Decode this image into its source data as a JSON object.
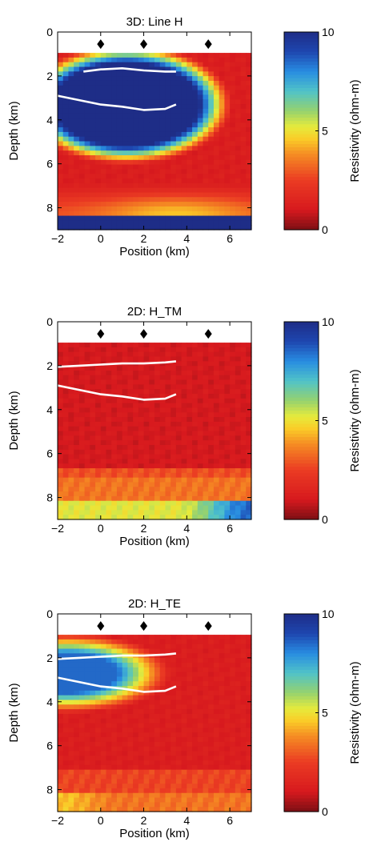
{
  "chart_data": [
    {
      "type": "heatmap",
      "title": "3D: Line H",
      "xlabel": "Position (km)",
      "ylabel": "Depth (km)",
      "xlim": [
        -2,
        7
      ],
      "ylim": [
        0,
        9
      ],
      "xticks": [
        "−2",
        "0",
        "2",
        "4",
        "6"
      ],
      "yticks": [
        "0",
        "2",
        "4",
        "6",
        "8"
      ],
      "colorbar": {
        "label": "Resistivity (ohm-m)",
        "range": [
          0,
          10
        ],
        "ticks": [
          "10",
          "5",
          "0"
        ]
      },
      "stations_x": [
        0,
        2,
        5
      ],
      "lines": [
        [
          [
            -0.8,
            1.8
          ],
          [
            0,
            1.7
          ],
          [
            1.0,
            1.65
          ],
          [
            2.0,
            1.75
          ],
          [
            3.0,
            1.8
          ],
          [
            3.5,
            1.8
          ]
        ],
        [
          [
            -2,
            2.9
          ],
          [
            -1,
            3.1
          ],
          [
            0,
            3.3
          ],
          [
            1,
            3.4
          ],
          [
            2,
            3.55
          ],
          [
            3,
            3.5
          ],
          [
            3.5,
            3.3
          ]
        ]
      ],
      "field": {
        "base": 1.2,
        "top_air": 0.95,
        "bottom_band": [
          8.3,
          10
        ],
        "anomalies": [
          {
            "x": 1.2,
            "z": 3.3,
            "rx": 3.4,
            "rz": 1.9,
            "v": 10,
            "halo": 0.5
          }
        ],
        "deep_gradient": {
          "from": 6.8,
          "to": 8.3,
          "v": 4.5,
          "center_x": 3.5,
          "spread_x": 3.5
        }
      }
    },
    {
      "type": "heatmap",
      "title": "2D: H_TM",
      "xlabel": "Position (km)",
      "ylabel": "Depth (km)",
      "xlim": [
        -2,
        7
      ],
      "ylim": [
        0,
        9
      ],
      "xticks": [
        "−2",
        "0",
        "2",
        "4",
        "6"
      ],
      "yticks": [
        "0",
        "2",
        "4",
        "6",
        "8"
      ],
      "colorbar": {
        "label": "Resistivity (ohm-m)",
        "range": [
          0,
          10
        ],
        "ticks": [
          "10",
          "5",
          "0"
        ]
      },
      "stations_x": [
        0,
        2,
        5
      ],
      "lines": [
        [
          [
            -2,
            2.05
          ],
          [
            -1,
            2.0
          ],
          [
            0,
            1.95
          ],
          [
            1,
            1.9
          ],
          [
            2,
            1.9
          ],
          [
            3,
            1.85
          ],
          [
            3.5,
            1.8
          ]
        ],
        [
          [
            -2,
            2.9
          ],
          [
            -1,
            3.1
          ],
          [
            0,
            3.3
          ],
          [
            1,
            3.4
          ],
          [
            2,
            3.55
          ],
          [
            3,
            3.5
          ],
          [
            3.5,
            3.3
          ]
        ]
      ],
      "field": {
        "base": 1.0,
        "top_air": 0.95,
        "layers": [
          {
            "z0": 6.6,
            "z1": 7.0,
            "v": 2.8
          },
          {
            "z0": 7.0,
            "z1": 8.1,
            "v": 3.4
          },
          {
            "z0": 8.1,
            "z1": 9.0,
            "v": 5.2,
            "ramp_x": [
              3.5,
              7
            ],
            "ramp_v": 8.5
          }
        ]
      }
    },
    {
      "type": "heatmap",
      "title": "2D: H_TE",
      "xlabel": "Position (km)",
      "ylabel": "Depth (km)",
      "xlim": [
        -2,
        7
      ],
      "ylim": [
        0,
        9
      ],
      "xticks": [
        "−2",
        "0",
        "2",
        "4",
        "6"
      ],
      "yticks": [
        "0",
        "2",
        "4",
        "6",
        "8"
      ],
      "colorbar": {
        "label": "Resistivity (ohm-m)",
        "range": [
          0,
          10
        ],
        "ticks": [
          "10",
          "5",
          "0"
        ]
      },
      "stations_x": [
        0,
        2,
        5
      ],
      "lines": [
        [
          [
            -2,
            2.05
          ],
          [
            -1,
            2.0
          ],
          [
            0,
            1.95
          ],
          [
            1,
            1.9
          ],
          [
            2,
            1.9
          ],
          [
            3,
            1.85
          ],
          [
            3.5,
            1.8
          ]
        ],
        [
          [
            -2,
            2.9
          ],
          [
            -1,
            3.1
          ],
          [
            0,
            3.3
          ],
          [
            1,
            3.4
          ],
          [
            2,
            3.55
          ],
          [
            3,
            3.5
          ],
          [
            3.5,
            3.3
          ]
        ]
      ],
      "field": {
        "base": 1.2,
        "top_air": 0.95,
        "anomalies": [
          {
            "x": -1.6,
            "z": 2.7,
            "rx": 2.4,
            "rz": 0.9,
            "v": 8.5,
            "halo": 1.2
          }
        ],
        "layers": [
          {
            "z0": 7.0,
            "z1": 8.1,
            "v": 2.6
          },
          {
            "z0": 8.1,
            "z1": 9.0,
            "v": 3.4,
            "ramp_x": [
              -2,
              1
            ],
            "ramp_v": 4.5,
            "ramp_dir": -1
          }
        ]
      }
    }
  ]
}
